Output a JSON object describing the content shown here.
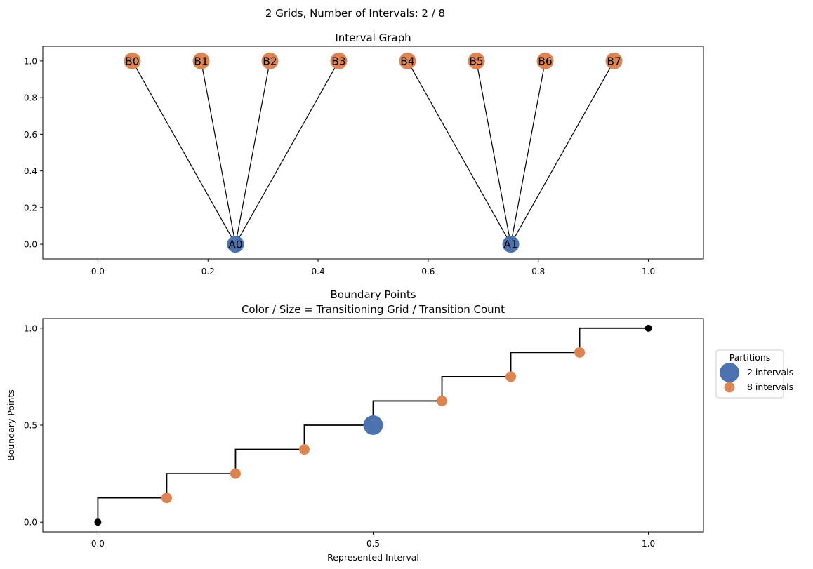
{
  "figure": {
    "suptitle": "2 Grids, Number of Intervals: 2 / 8"
  },
  "chart_data": [
    {
      "type": "network",
      "title": "Interval Graph",
      "xlabel": "",
      "ylabel": "",
      "xlim": [
        -0.1,
        1.1
      ],
      "ylim": [
        -0.08,
        1.08
      ],
      "xticks": [
        0.0,
        0.2,
        0.4,
        0.6,
        0.8,
        1.0
      ],
      "yticks": [
        0.0,
        0.2,
        0.4,
        0.6,
        0.8,
        1.0
      ],
      "nodes": [
        {
          "id": "A0",
          "x": 0.25,
          "y": 0.0,
          "group": "A"
        },
        {
          "id": "A1",
          "x": 0.75,
          "y": 0.0,
          "group": "A"
        },
        {
          "id": "B0",
          "x": 0.0625,
          "y": 1.0,
          "group": "B"
        },
        {
          "id": "B1",
          "x": 0.1875,
          "y": 1.0,
          "group": "B"
        },
        {
          "id": "B2",
          "x": 0.3125,
          "y": 1.0,
          "group": "B"
        },
        {
          "id": "B3",
          "x": 0.4375,
          "y": 1.0,
          "group": "B"
        },
        {
          "id": "B4",
          "x": 0.5625,
          "y": 1.0,
          "group": "B"
        },
        {
          "id": "B5",
          "x": 0.6875,
          "y": 1.0,
          "group": "B"
        },
        {
          "id": "B6",
          "x": 0.8125,
          "y": 1.0,
          "group": "B"
        },
        {
          "id": "B7",
          "x": 0.9375,
          "y": 1.0,
          "group": "B"
        }
      ],
      "edges": [
        [
          "A0",
          "B0"
        ],
        [
          "A0",
          "B1"
        ],
        [
          "A0",
          "B2"
        ],
        [
          "A0",
          "B3"
        ],
        [
          "A1",
          "B4"
        ],
        [
          "A1",
          "B5"
        ],
        [
          "A1",
          "B6"
        ],
        [
          "A1",
          "B7"
        ]
      ],
      "colors": {
        "A": "#4c72b0",
        "B": "#dd8452"
      }
    },
    {
      "type": "scatter",
      "title": "Boundary Points",
      "subtitle": "Color / Size = Transitioning Grid / Transition Count",
      "xlabel": "Represented Interval",
      "ylabel": "Boundary Points",
      "xlim": [
        -0.2,
        2.2
      ],
      "ylim": [
        -0.05,
        1.05
      ],
      "xticks": [
        0.0,
        1.0,
        2.0
      ],
      "xticklabels": [
        "0.0",
        "0.5",
        "1.0"
      ],
      "yticks": [
        0.0,
        0.5,
        1.0
      ],
      "step_path": [
        [
          0.0,
          0.0
        ],
        [
          0.0,
          0.125
        ],
        [
          0.25,
          0.125
        ],
        [
          0.25,
          0.25
        ],
        [
          0.5,
          0.25
        ],
        [
          0.5,
          0.375
        ],
        [
          0.75,
          0.375
        ],
        [
          0.75,
          0.5
        ],
        [
          1.0,
          0.5
        ],
        [
          1.0,
          0.625
        ],
        [
          1.25,
          0.625
        ],
        [
          1.25,
          0.75
        ],
        [
          1.5,
          0.75
        ],
        [
          1.5,
          0.875
        ],
        [
          1.75,
          0.875
        ],
        [
          1.75,
          1.0
        ],
        [
          2.0,
          1.0
        ]
      ],
      "points": [
        {
          "x": 0.0,
          "y": 0.0,
          "group": "endpoint"
        },
        {
          "x": 0.25,
          "y": 0.125,
          "group": "8 intervals"
        },
        {
          "x": 0.5,
          "y": 0.25,
          "group": "8 intervals"
        },
        {
          "x": 0.75,
          "y": 0.375,
          "group": "8 intervals"
        },
        {
          "x": 1.0,
          "y": 0.5,
          "group": "2 intervals"
        },
        {
          "x": 1.25,
          "y": 0.625,
          "group": "8 intervals"
        },
        {
          "x": 1.5,
          "y": 0.75,
          "group": "8 intervals"
        },
        {
          "x": 1.75,
          "y": 0.875,
          "group": "8 intervals"
        },
        {
          "x": 2.0,
          "y": 1.0,
          "group": "endpoint"
        }
      ],
      "legend": {
        "title": "Partitions",
        "placement": "right",
        "entries": [
          {
            "label": "2 intervals",
            "group": "2 intervals"
          },
          {
            "label": "8 intervals",
            "group": "8 intervals"
          }
        ]
      },
      "colors": {
        "2 intervals": "#4c72b0",
        "8 intervals": "#dd8452",
        "endpoint": "#000000"
      }
    }
  ]
}
